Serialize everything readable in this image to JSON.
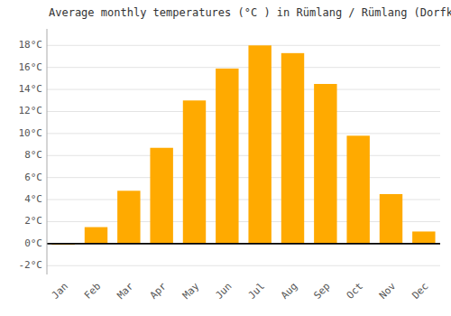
{
  "chart_data": {
    "type": "bar",
    "title": "Average monthly temperatures (°C ) in Rümlang / Rümlang (Dorfkern)",
    "categories": [
      "Jan",
      "Feb",
      "Mar",
      "Apr",
      "May",
      "Jun",
      "Jul",
      "Aug",
      "Sep",
      "Oct",
      "Nov",
      "Dec"
    ],
    "values": [
      -0.1,
      1.5,
      4.8,
      8.7,
      13.0,
      15.9,
      18.0,
      17.3,
      14.5,
      9.8,
      4.5,
      1.1
    ],
    "color": "#FFAA00",
    "ylim": [
      -2.8,
      19.5
    ],
    "yticks": [
      {
        "value": -2,
        "label": "-2°C"
      },
      {
        "value": 0,
        "label": "0°C"
      },
      {
        "value": 2,
        "label": "2°C"
      },
      {
        "value": 4,
        "label": "4°C"
      },
      {
        "value": 6,
        "label": "6°C"
      },
      {
        "value": 8,
        "label": "8°C"
      },
      {
        "value": 10,
        "label": "10°C"
      },
      {
        "value": 12,
        "label": "12°C"
      },
      {
        "value": 14,
        "label": "14°C"
      },
      {
        "value": 16,
        "label": "16°C"
      },
      {
        "value": 18,
        "label": "18°C"
      }
    ],
    "grid": true
  }
}
